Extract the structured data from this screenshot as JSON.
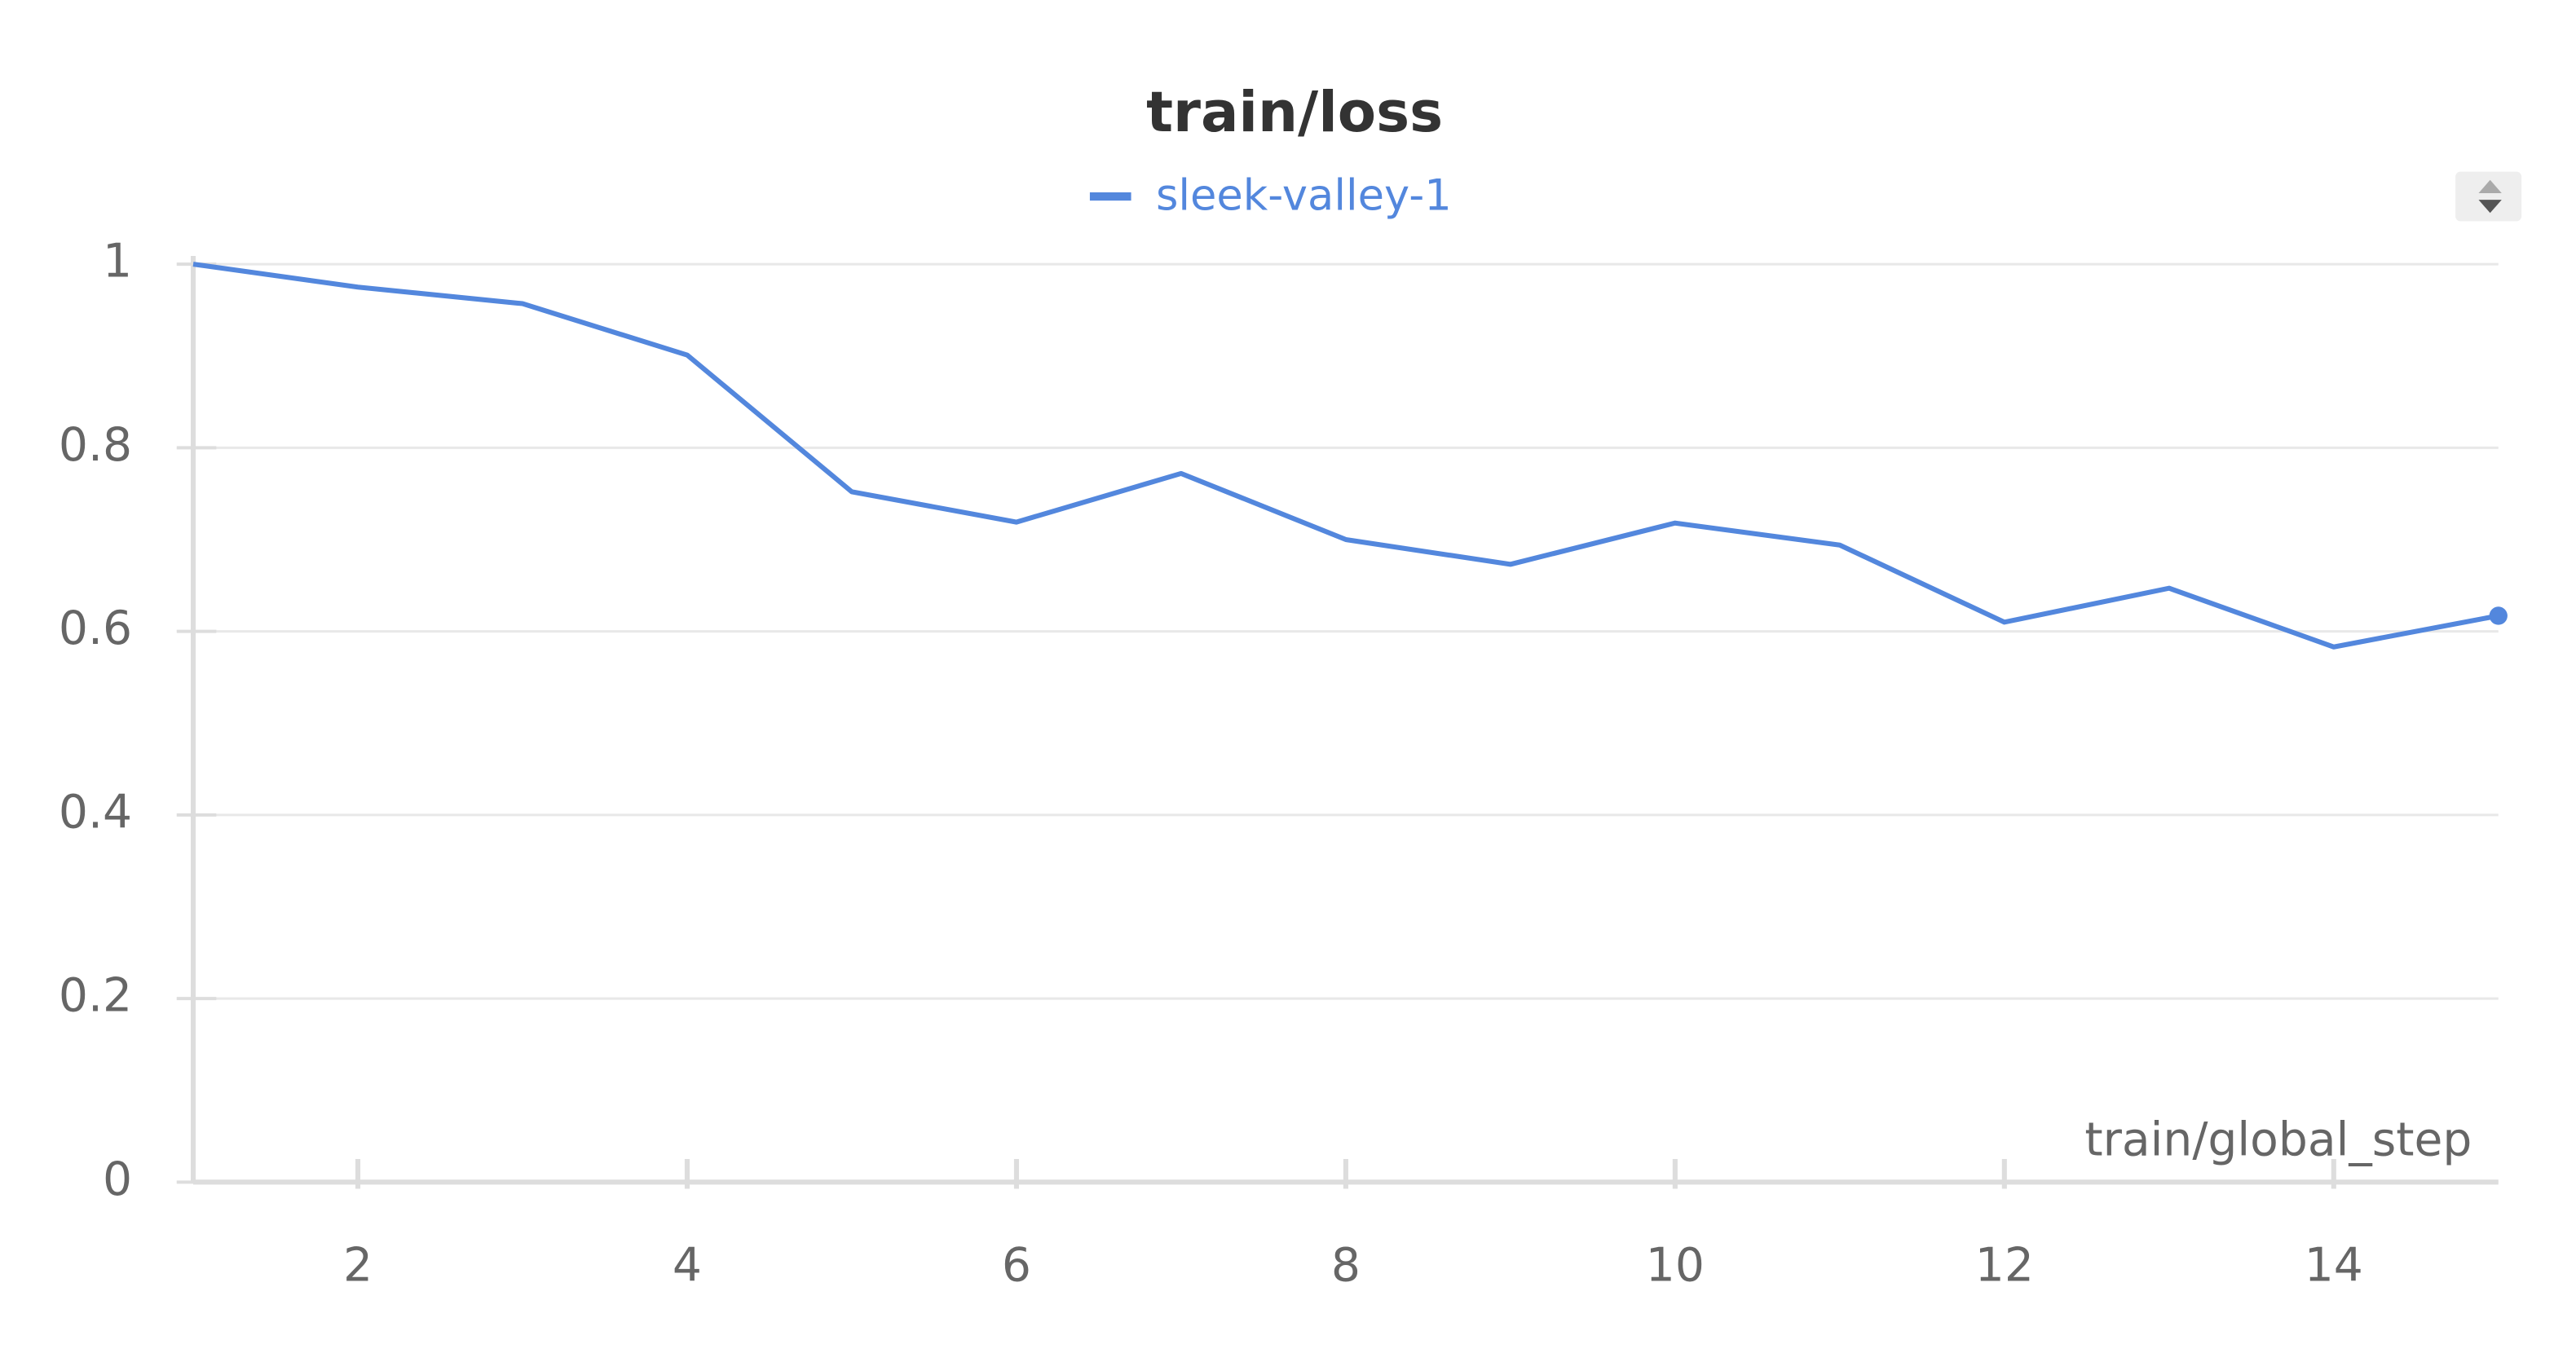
{
  "chart_data": {
    "type": "line",
    "title": "train/loss",
    "x_label": "train/global_step",
    "x": [
      1,
      2,
      3,
      4,
      5,
      6,
      7,
      8,
      9,
      10,
      11,
      12,
      13,
      14,
      15
    ],
    "series": [
      {
        "name": "sleek-valley-1",
        "color": "#5387dd",
        "values": [
          1.0,
          0.975,
          0.957,
          0.901,
          0.752,
          0.719,
          0.772,
          0.7,
          0.673,
          0.718,
          0.694,
          0.61,
          0.647,
          0.583,
          0.617
        ]
      }
    ],
    "xlim": [
      1,
      15
    ],
    "xticks": [
      2,
      4,
      6,
      8,
      10,
      12,
      14
    ],
    "ylim": [
      0,
      1
    ],
    "yticks": [
      0,
      0.2,
      0.4,
      0.6,
      0.8,
      1
    ],
    "grid": true,
    "legend": "top"
  }
}
